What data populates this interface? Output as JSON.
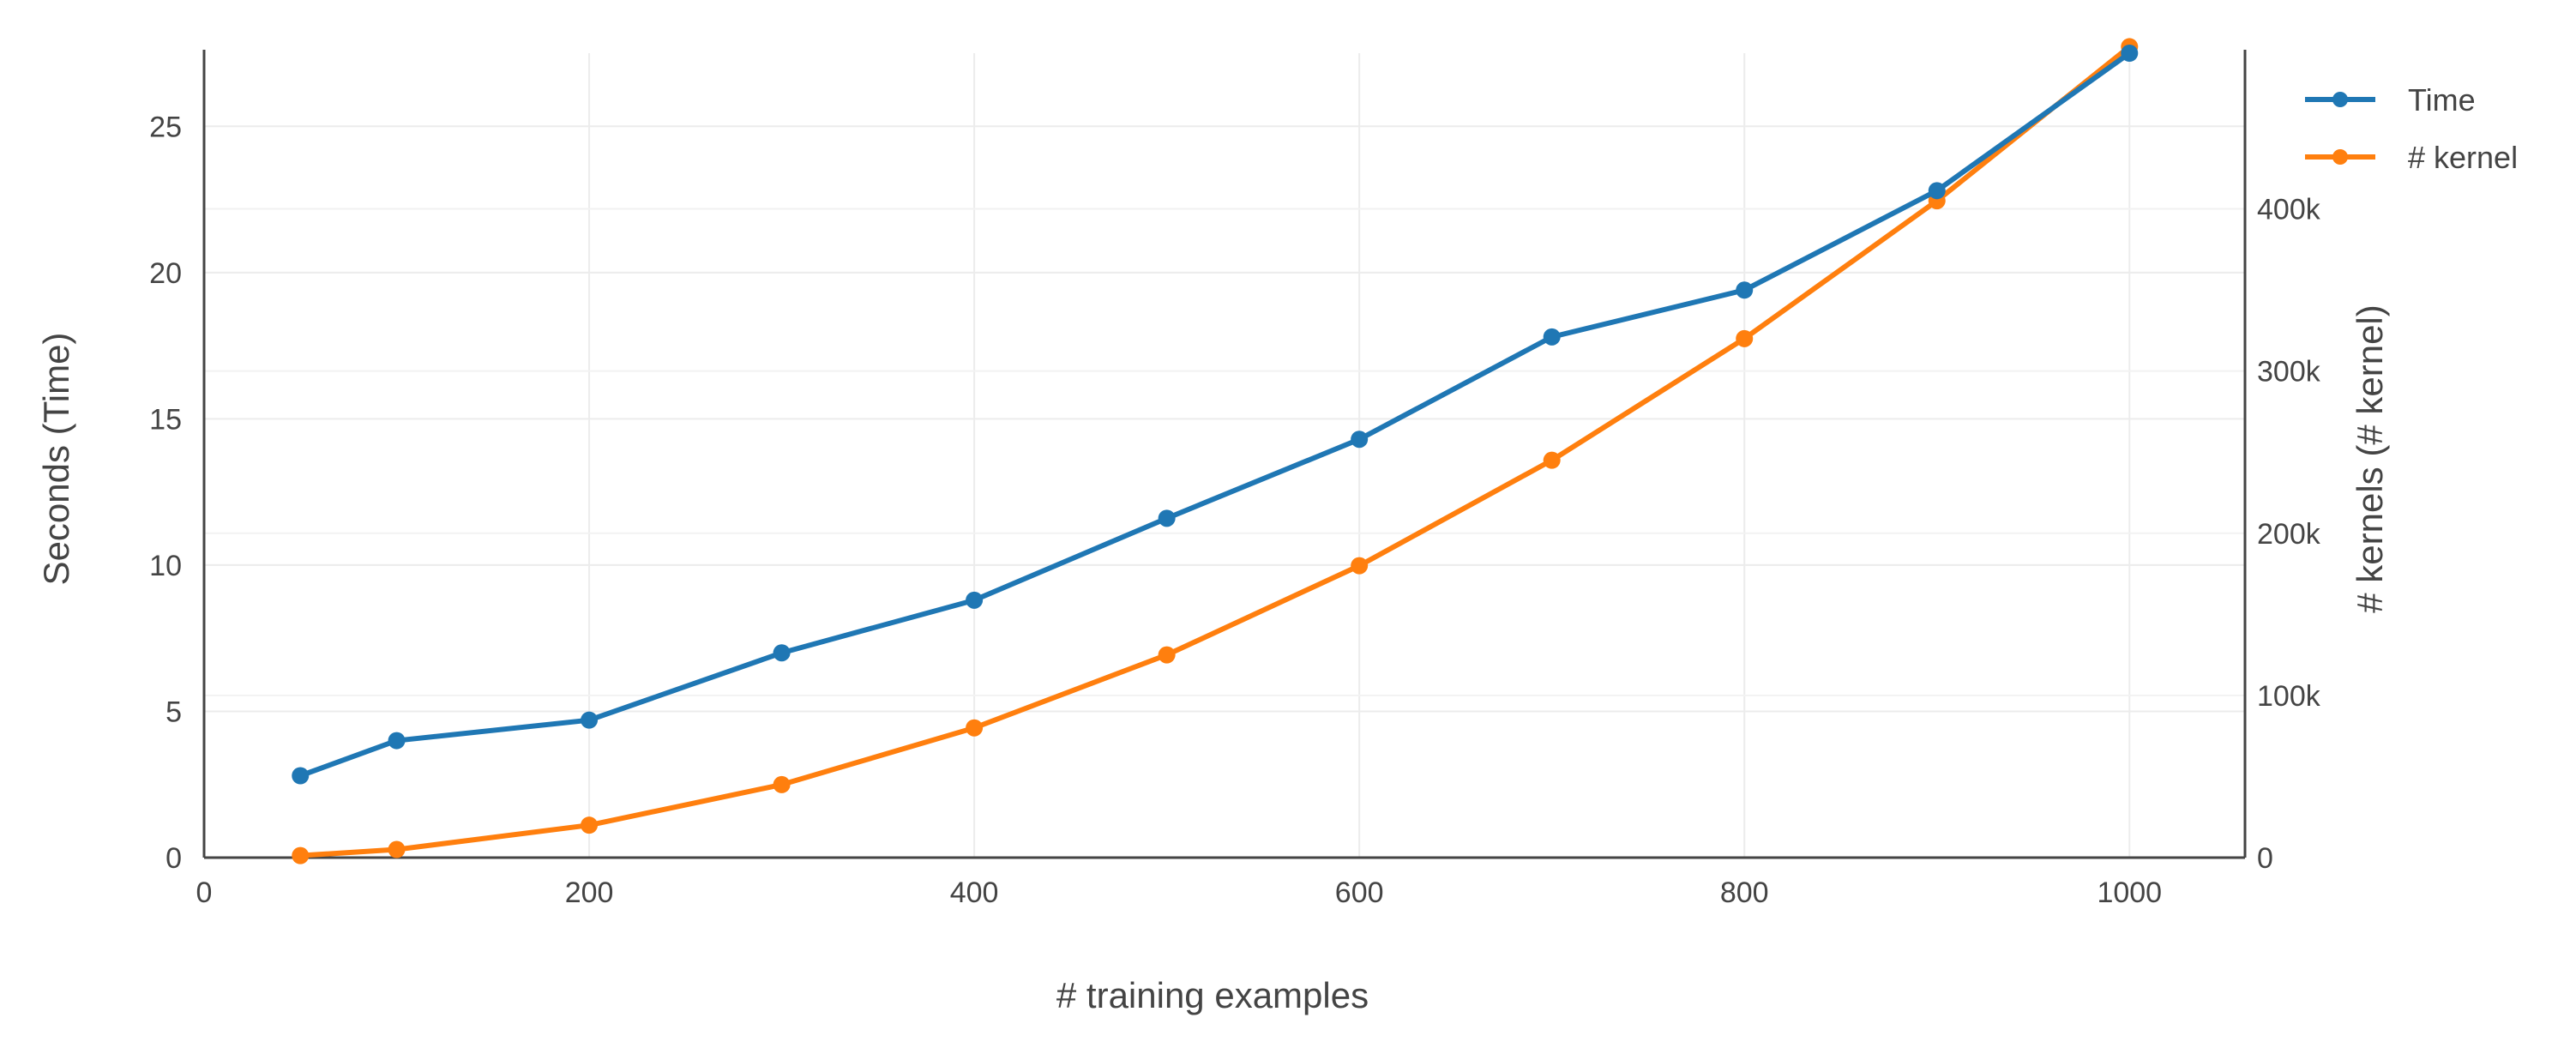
{
  "chart_data": {
    "type": "line",
    "xlabel": "# training examples",
    "ylabel_left": "Seconds (Time)",
    "ylabel_right": "# kernels (# kernel)",
    "xlim": [
      0,
      1060
    ],
    "ylim_left": [
      0,
      27.5
    ],
    "ylim_right": [
      0,
      496000
    ],
    "x_ticks": [
      0,
      200,
      400,
      600,
      800,
      1000
    ],
    "x_tick_labels": [
      "0",
      "200",
      "400",
      "600",
      "800",
      "1000"
    ],
    "y_left_ticks": [
      0,
      5,
      10,
      15,
      20,
      25
    ],
    "y_left_tick_labels": [
      "0",
      "5",
      "10",
      "15",
      "20",
      "25"
    ],
    "y_right_ticks": [
      0,
      100000,
      200000,
      300000,
      400000
    ],
    "y_right_tick_labels": [
      "0",
      "100k",
      "200k",
      "300k",
      "400k"
    ],
    "grid": true,
    "legend_position": "top-right",
    "series": [
      {
        "name": "Time",
        "axis": "left",
        "color": "#1f77b4",
        "x": [
          50,
          100,
          200,
          300,
          400,
          500,
          600,
          700,
          800,
          900,
          1000
        ],
        "y": [
          2.8,
          4.0,
          4.7,
          7.0,
          8.8,
          11.6,
          14.3,
          17.8,
          19.4,
          22.8,
          27.5
        ]
      },
      {
        "name": "# kernel",
        "axis": "right",
        "color": "#ff7f0e",
        "x": [
          50,
          100,
          200,
          300,
          400,
          500,
          600,
          700,
          800,
          900,
          1000
        ],
        "y": [
          1250,
          5000,
          20000,
          45000,
          80000,
          125000,
          180000,
          245000,
          320000,
          405000,
          500000
        ]
      }
    ]
  }
}
